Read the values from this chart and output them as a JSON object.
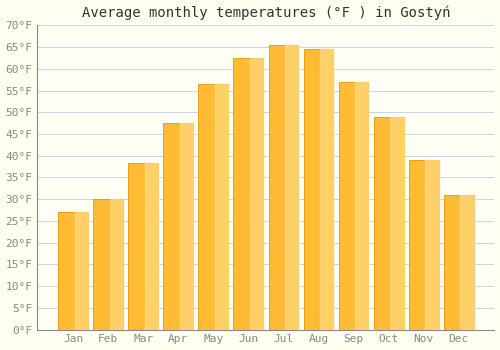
{
  "title": "Average monthly temperatures (°F ) in Gostyń",
  "months": [
    "Jan",
    "Feb",
    "Mar",
    "Apr",
    "May",
    "Jun",
    "Jul",
    "Aug",
    "Sep",
    "Oct",
    "Nov",
    "Dec"
  ],
  "values": [
    27.1,
    30.0,
    38.3,
    47.5,
    56.5,
    62.5,
    65.5,
    64.5,
    57.0,
    49.0,
    39.0,
    31.0
  ],
  "bar_color_main": "#FFBB33",
  "bar_color_light": "#FFD980",
  "bar_color_edge": "#E8960A",
  "ylim": [
    0,
    70
  ],
  "yticks": [
    0,
    5,
    10,
    15,
    20,
    25,
    30,
    35,
    40,
    45,
    50,
    55,
    60,
    65,
    70
  ],
  "ytick_labels": [
    "0°F",
    "5°F",
    "10°F",
    "15°F",
    "20°F",
    "25°F",
    "30°F",
    "35°F",
    "40°F",
    "45°F",
    "50°F",
    "55°F",
    "60°F",
    "65°F",
    "70°F"
  ],
  "background_color": "#FFFFF0",
  "plot_bg_color": "#FFFFF5",
  "grid_color": "#C8D4E8",
  "title_fontsize": 10,
  "tick_fontsize": 8,
  "bar_width": 0.85,
  "tick_color": "#888888",
  "spine_color": "#888888"
}
